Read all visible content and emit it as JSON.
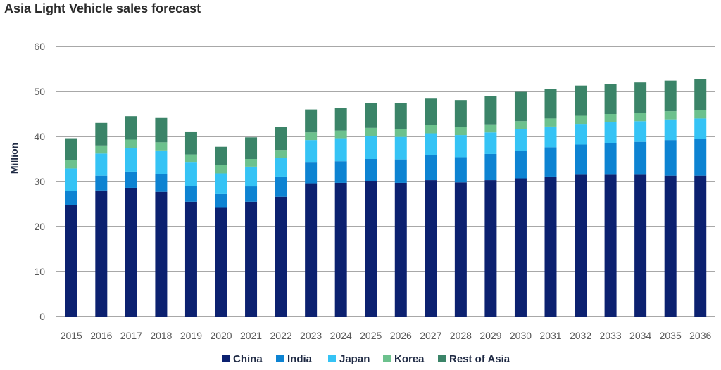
{
  "chart_data": {
    "type": "bar",
    "stacked": true,
    "title": "Asia Light Vehicle sales forecast",
    "xlabel": "",
    "ylabel": "Million",
    "ylim": [
      0,
      60
    ],
    "yticks": [
      0,
      10,
      20,
      30,
      40,
      50,
      60
    ],
    "grid": true,
    "legend_position": "bottom",
    "categories": [
      "2015",
      "2016",
      "2017",
      "2018",
      "2019",
      "2020",
      "2021",
      "2022",
      "2023",
      "2024",
      "2025",
      "2026",
      "2027",
      "2028",
      "2029",
      "2030",
      "2031",
      "2032",
      "2033",
      "2034",
      "2035",
      "2036"
    ],
    "series": [
      {
        "name": "China",
        "color": "#0c2170",
        "values": [
          24.8,
          28.0,
          28.6,
          27.7,
          25.5,
          24.3,
          25.5,
          26.6,
          29.6,
          29.7,
          30.0,
          29.7,
          30.3,
          29.8,
          30.3,
          30.7,
          31.1,
          31.5,
          31.5,
          31.5,
          31.3,
          31.3
        ]
      },
      {
        "name": "India",
        "color": "#0d83d2",
        "values": [
          3.1,
          3.3,
          3.6,
          4.0,
          3.5,
          2.9,
          3.4,
          4.5,
          4.6,
          4.8,
          5.0,
          5.2,
          5.5,
          5.6,
          5.8,
          6.1,
          6.5,
          6.7,
          7.0,
          7.3,
          7.9,
          8.2
        ]
      },
      {
        "name": "Japan",
        "color": "#35c3f5",
        "values": [
          5.0,
          4.9,
          5.3,
          5.2,
          5.2,
          4.6,
          4.4,
          4.2,
          5.0,
          5.1,
          5.1,
          5.0,
          4.9,
          4.9,
          4.8,
          4.8,
          4.6,
          4.6,
          4.7,
          4.6,
          4.6,
          4.5
        ]
      },
      {
        "name": "Korea",
        "color": "#6cc18d",
        "values": [
          1.8,
          1.8,
          1.8,
          1.8,
          1.8,
          1.9,
          1.7,
          1.7,
          1.7,
          1.7,
          1.8,
          1.8,
          1.8,
          1.8,
          1.8,
          1.8,
          1.8,
          1.8,
          1.8,
          1.8,
          1.8,
          1.8
        ]
      },
      {
        "name": "Rest of Asia",
        "color": "#3b8468",
        "values": [
          4.9,
          5.0,
          5.2,
          5.4,
          5.1,
          4.0,
          4.8,
          5.1,
          5.1,
          5.1,
          5.6,
          5.8,
          5.9,
          6.0,
          6.3,
          6.5,
          6.6,
          6.7,
          6.7,
          6.8,
          6.8,
          7.0
        ]
      }
    ]
  }
}
